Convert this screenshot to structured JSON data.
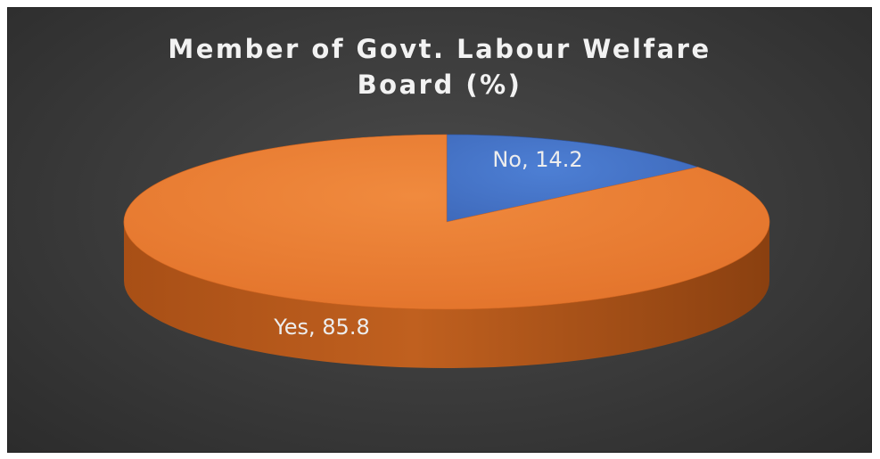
{
  "chart_data": {
    "type": "pie",
    "title": "Member of Govt. Labour Welfare Board (%)",
    "slices": [
      {
        "label": "No",
        "value": 14.2,
        "data_label": "No, 14.2",
        "color": "#4472c4"
      },
      {
        "label": "Yes",
        "value": 85.8,
        "data_label": "Yes, 85.8",
        "color": "#ed7d31"
      }
    ],
    "style": "3d",
    "background_color": "#3b3b3b",
    "title_color": "#f2f2f2",
    "label_color": "#ededed",
    "legend": "none"
  }
}
